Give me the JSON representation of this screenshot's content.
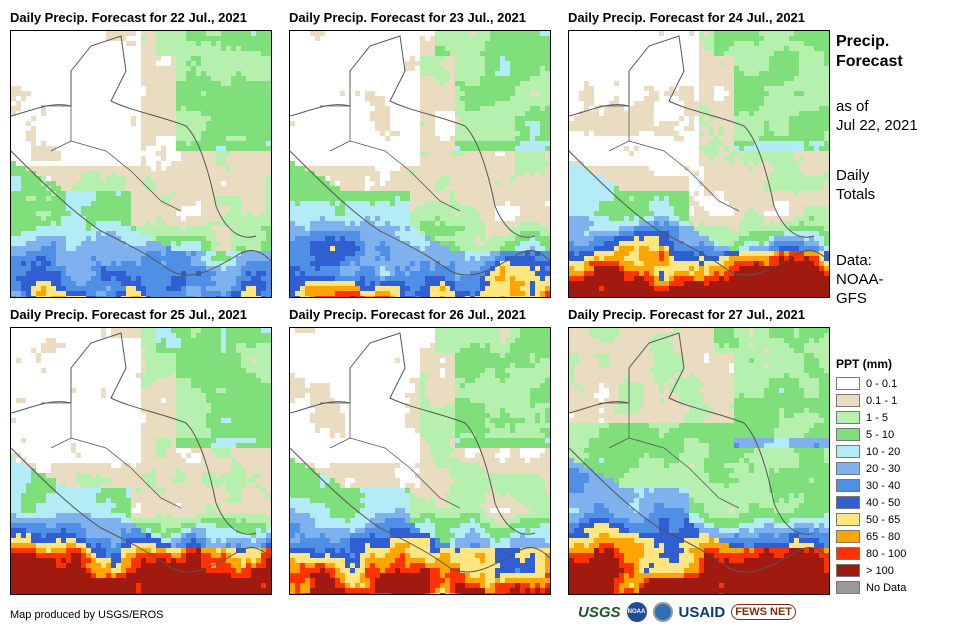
{
  "panels": [
    {
      "title": "Daily Precip. Forecast for 22 Jul., 2021"
    },
    {
      "title": "Daily Precip. Forecast for 23 Jul., 2021"
    },
    {
      "title": "Daily Precip. Forecast for 24 Jul., 2021"
    },
    {
      "title": "Daily Precip. Forecast for 25 Jul., 2021"
    },
    {
      "title": "Daily Precip. Forecast for 26 Jul., 2021"
    },
    {
      "title": "Daily Precip. Forecast for 27 Jul., 2021"
    }
  ],
  "sidebar": {
    "title_line1": "Precip.",
    "title_line2": "Forecast",
    "asof_line1": "as of",
    "asof_line2": "Jul 22, 2021",
    "totals_line1": "Daily",
    "totals_line2": "Totals",
    "data_line1": "Data:",
    "data_line2": "NOAA-",
    "data_line3": "GFS"
  },
  "legend": {
    "title": "PPT (mm)",
    "items": [
      {
        "label": "0 - 0.1",
        "color": "#ffffff"
      },
      {
        "label": "0.1 - 1",
        "color": "#eadcc0"
      },
      {
        "label": "1 - 5",
        "color": "#b6f0ae"
      },
      {
        "label": "5 - 10",
        "color": "#7fe07b"
      },
      {
        "label": "10 - 20",
        "color": "#b3ecf7"
      },
      {
        "label": "20 - 30",
        "color": "#7fb1ee"
      },
      {
        "label": "30 - 40",
        "color": "#4f8fe6"
      },
      {
        "label": "40 - 50",
        "color": "#2f5fd0"
      },
      {
        "label": "50 - 65",
        "color": "#ffe680"
      },
      {
        "label": "65 - 80",
        "color": "#ffa500"
      },
      {
        "label": "80 - 100",
        "color": "#ff3300"
      },
      {
        "label": "> 100",
        "color": "#a01a10"
      },
      {
        "label": "No Data",
        "color": "#9a9a9a"
      }
    ]
  },
  "footer": {
    "credit": "Map produced by USGS/EROS",
    "logo_usgs": "USGS",
    "logo_noaa": "NOAA",
    "logo_usaid": "USAID",
    "logo_fews": "FEWS NET"
  }
}
